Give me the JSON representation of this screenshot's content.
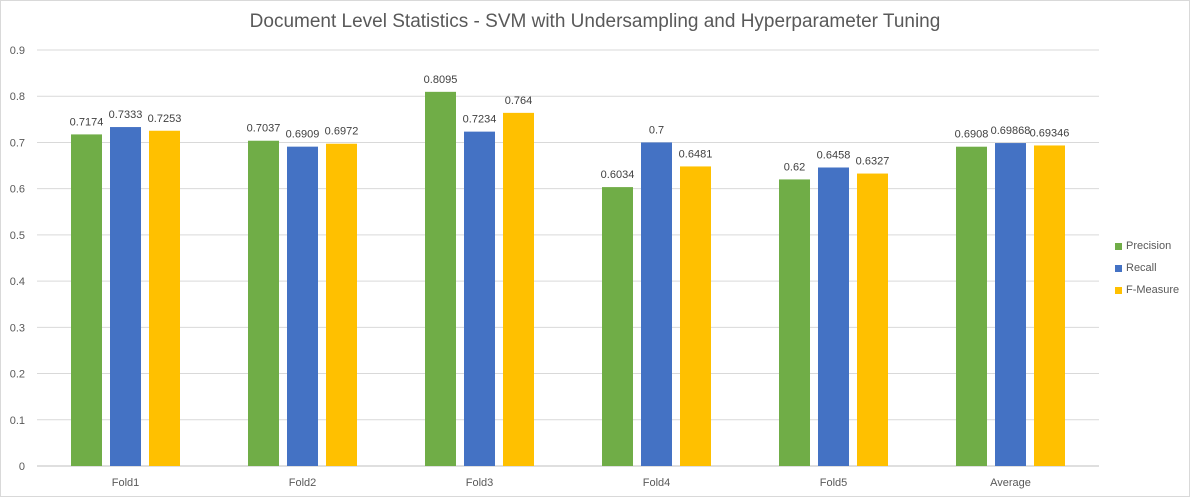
{
  "chart_data": {
    "type": "bar",
    "title": "Document Level Statistics - SVM with Undersampling and Hyperparameter Tuning",
    "xlabel": "",
    "ylabel": "",
    "ylim": [
      0,
      0.9
    ],
    "yticks": [
      "0",
      "0.1",
      "0.2",
      "0.3",
      "0.4",
      "0.5",
      "0.6",
      "0.7",
      "0.8",
      "0.9"
    ],
    "grid": true,
    "legend_position": "right",
    "categories": [
      "Fold1",
      "Fold2",
      "Fold3",
      "Fold4",
      "Fold5",
      "Average"
    ],
    "series": [
      {
        "name": "Precision",
        "color": "#70ad47",
        "values": [
          0.7174,
          0.7037,
          0.8095,
          0.6034,
          0.62,
          0.6908
        ],
        "labels": [
          "0.7174",
          "0.7037",
          "0.8095",
          "0.6034",
          "0.62",
          "0.6908"
        ]
      },
      {
        "name": "Recall",
        "color": "#4472c4",
        "values": [
          0.7333,
          0.6909,
          0.7234,
          0.7,
          0.6458,
          0.69868
        ],
        "labels": [
          "0.7333",
          "0.6909",
          "0.7234",
          "0.7",
          "0.6458",
          "0.69868"
        ]
      },
      {
        "name": "F-Measure",
        "color": "#ffc000",
        "values": [
          0.7253,
          0.6972,
          0.764,
          0.6481,
          0.6327,
          0.69346
        ],
        "labels": [
          "0.7253",
          "0.6972",
          "0.764",
          "0.6481",
          "0.6327",
          "0.69346"
        ]
      }
    ]
  }
}
